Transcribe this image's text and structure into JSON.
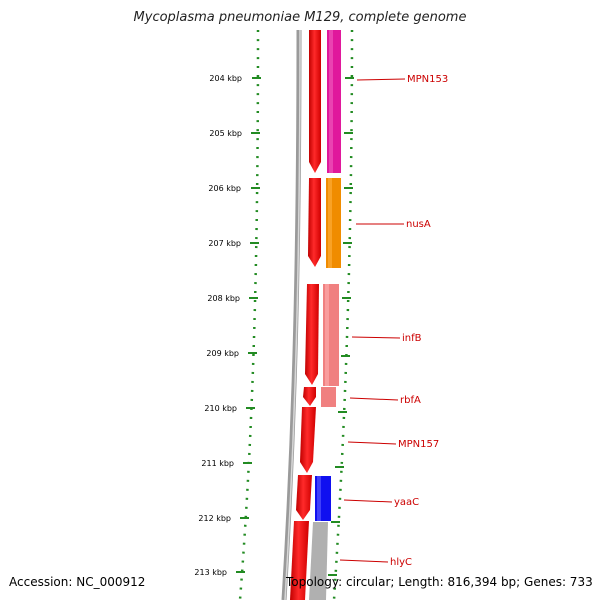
{
  "title": "Mycoplasma pneumoniae M129, complete genome",
  "footer": {
    "accession": "Accession: NC_000912",
    "topology": "Topology: circular; Length: 816,394 bp; Genes: 733"
  },
  "scale": {
    "ticks": [
      "204 kbp",
      "205 kbp",
      "206 kbp",
      "207 kbp",
      "208 kbp",
      "209 kbp",
      "210 kbp",
      "211 kbp",
      "212 kbp",
      "213 kbp"
    ]
  },
  "genes": [
    {
      "name": "MPN153",
      "color": "#e0189c"
    },
    {
      "name": "nusA",
      "color": "#f08c00"
    },
    {
      "name": "infB",
      "color": "#f08080"
    },
    {
      "name": "rbfA",
      "color": "#f08080"
    },
    {
      "name": "MPN157",
      "color": "#ffffff"
    },
    {
      "name": "yaaC",
      "color": "#1010f0"
    },
    {
      "name": "hlyC",
      "color": "#b0b0b0"
    }
  ],
  "colors": {
    "cds": "#ee0000",
    "backbone": "#888888",
    "tick": "#228b22",
    "label": "#cc0000"
  }
}
